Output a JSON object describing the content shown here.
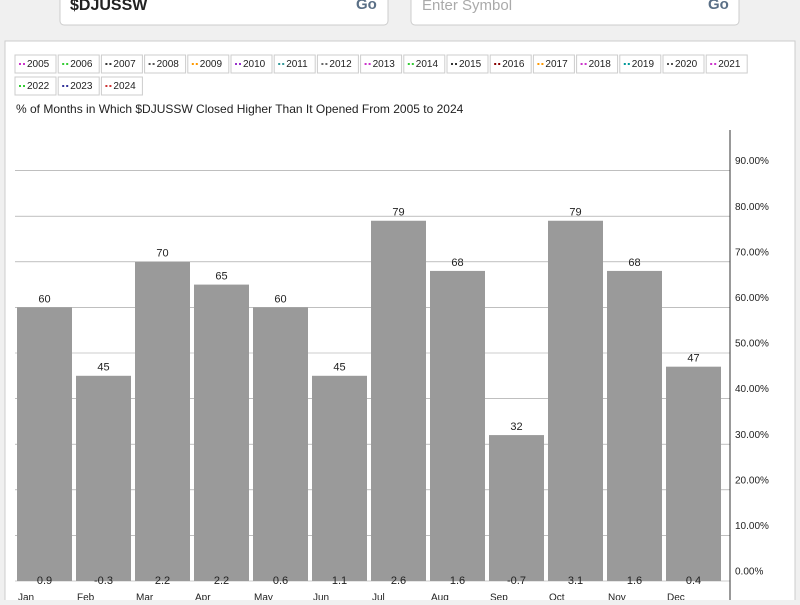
{
  "inputs": [
    {
      "value": "$DJUSSW",
      "button": "Go"
    },
    {
      "placeholder": "Enter Symbol",
      "button": "Go"
    }
  ],
  "legend": [
    {
      "name": "2005",
      "color": "#cc33cc"
    },
    {
      "name": "2006",
      "color": "#33cc33"
    },
    {
      "name": "2007",
      "color": "#333333"
    },
    {
      "name": "2008",
      "color": "#555555"
    },
    {
      "name": "2009",
      "color": "#ff9900"
    },
    {
      "name": "2010",
      "color": "#9933cc"
    },
    {
      "name": "2011",
      "color": "#339999"
    },
    {
      "name": "2012",
      "color": "#666666"
    },
    {
      "name": "2013",
      "color": "#cc33cc"
    },
    {
      "name": "2014",
      "color": "#33cc33"
    },
    {
      "name": "2015",
      "color": "#333333"
    },
    {
      "name": "2016",
      "color": "#880000"
    },
    {
      "name": "2017",
      "color": "#ff9900"
    },
    {
      "name": "2018",
      "color": "#cc33cc"
    },
    {
      "name": "2019",
      "color": "#009999"
    },
    {
      "name": "2020",
      "color": "#555555"
    },
    {
      "name": "2021",
      "color": "#cc33cc"
    },
    {
      "name": "2022",
      "color": "#33cc33"
    },
    {
      "name": "2023",
      "color": "#333399"
    },
    {
      "name": "2024",
      "color": "#cc3333"
    }
  ],
  "chart_data": {
    "type": "bar",
    "title": "% of Months in Which $DJUSSW Closed Higher Than It Opened From 2005 to 2024",
    "categories": [
      "Jan",
      "Feb",
      "Mar",
      "Apr",
      "May",
      "Jun",
      "Jul",
      "Aug",
      "Sep",
      "Oct",
      "Nov",
      "Dec"
    ],
    "values": [
      60,
      45,
      70,
      65,
      60,
      45,
      79,
      68,
      32,
      79,
      68,
      47
    ],
    "avg_change": [
      0.9,
      -0.3,
      2.2,
      2.2,
      0.6,
      1.1,
      2.6,
      1.6,
      -0.7,
      3.1,
      1.6,
      0.4
    ],
    "color": "#9a9a9a",
    "ylim": [
      0,
      100
    ],
    "yticks": [
      {
        "value": 0,
        "label": "0.00%"
      },
      {
        "value": 10,
        "label": "10.00%"
      },
      {
        "value": 20,
        "label": "20.00%"
      },
      {
        "value": 30,
        "label": "30.00%"
      },
      {
        "value": 40,
        "label": "40.00%"
      },
      {
        "value": 50,
        "label": "50.00%"
      },
      {
        "value": 60,
        "label": "60.00%"
      },
      {
        "value": 70,
        "label": "70.00%"
      },
      {
        "value": 80,
        "label": "80.00%"
      },
      {
        "value": 90,
        "label": "90.00%"
      }
    ],
    "grid": true
  }
}
